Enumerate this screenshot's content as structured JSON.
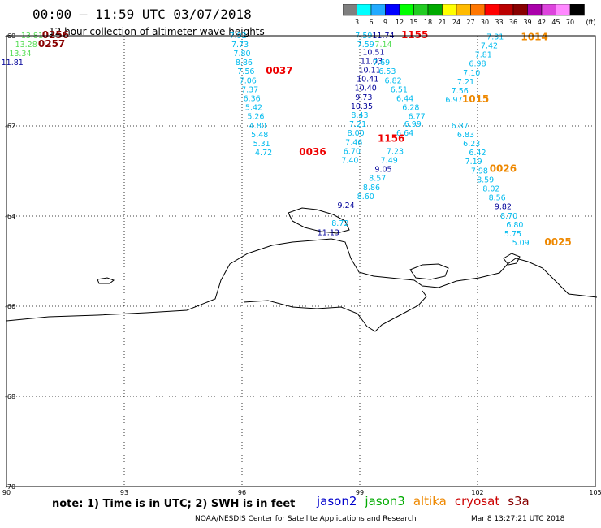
{
  "header": {
    "title": "00:00 – 11:59 UTC 03/07/2018",
    "subtitle": "12 hour collection of altimeter wave heights"
  },
  "colorbar": {
    "colors": [
      "#7f7f7f",
      "#00ffff",
      "#22aaff",
      "#0000ff",
      "#00ff00",
      "#22cc22",
      "#00aa00",
      "#ffff00",
      "#ffbb00",
      "#ff7700",
      "#ff0000",
      "#bb0000",
      "#880000",
      "#aa00aa",
      "#dd44dd",
      "#ff88ff",
      "#000000"
    ],
    "labels": [
      "3",
      "6",
      "9",
      "12",
      "15",
      "18",
      "21",
      "24",
      "27",
      "30",
      "33",
      "36",
      "39",
      "42",
      "45",
      "70"
    ],
    "unit": "(ft)"
  },
  "axes": {
    "lon_ticks": [
      "90",
      "93",
      "96",
      "99",
      "102",
      "105"
    ],
    "lat_ticks": [
      "-60",
      "-62",
      "-64",
      "-66",
      "-68",
      "-70"
    ],
    "lon_range": [
      90,
      105
    ],
    "lat_range": [
      -70,
      -60
    ]
  },
  "colors": {
    "cyan": "#00bbee",
    "dark_blue": "#000099",
    "green": "#55dd55",
    "red": "#ee0000",
    "dark_red": "#880000",
    "orange": "#ee8800"
  },
  "observations": [
    {
      "text": "13.81",
      "lon": 90.65,
      "lat": -60.05,
      "color": "#55dd55"
    },
    {
      "text": "13.28",
      "lon": 90.5,
      "lat": -60.25,
      "color": "#55dd55"
    },
    {
      "text": "13.34",
      "lon": 90.35,
      "lat": -60.45,
      "color": "#55dd55"
    },
    {
      "text": "11.81",
      "lon": 90.15,
      "lat": -60.65,
      "color": "#000099"
    },
    {
      "text": "7.92",
      "lon": 95.9,
      "lat": -60.05,
      "color": "#00bbee"
    },
    {
      "text": "7.73",
      "lon": 95.95,
      "lat": -60.25,
      "color": "#00bbee"
    },
    {
      "text": "7.80",
      "lon": 96.0,
      "lat": -60.45,
      "color": "#00bbee"
    },
    {
      "text": "8.86",
      "lon": 96.05,
      "lat": -60.65,
      "color": "#00bbee"
    },
    {
      "text": "7.56",
      "lon": 96.1,
      "lat": -60.85,
      "color": "#00bbee"
    },
    {
      "text": "7.06",
      "lon": 96.15,
      "lat": -61.05,
      "color": "#00bbee"
    },
    {
      "text": "7.37",
      "lon": 96.2,
      "lat": -61.25,
      "color": "#00bbee"
    },
    {
      "text": "6.36",
      "lon": 96.25,
      "lat": -61.45,
      "color": "#00bbee"
    },
    {
      "text": "5.42",
      "lon": 96.3,
      "lat": -61.65,
      "color": "#00bbee"
    },
    {
      "text": "5.26",
      "lon": 96.35,
      "lat": -61.85,
      "color": "#00bbee"
    },
    {
      "text": "4.80",
      "lon": 96.4,
      "lat": -62.05,
      "color": "#00bbee"
    },
    {
      "text": "5.48",
      "lon": 96.45,
      "lat": -62.25,
      "color": "#00bbee"
    },
    {
      "text": "5.31",
      "lon": 96.5,
      "lat": -62.45,
      "color": "#00bbee"
    },
    {
      "text": "4.72",
      "lon": 96.55,
      "lat": -62.65,
      "color": "#00bbee"
    },
    {
      "text": "7.59",
      "lon": 99.1,
      "lat": -60.05,
      "color": "#00bbee"
    },
    {
      "text": "11.74",
      "lon": 99.6,
      "lat": -60.05,
      "color": "#000099"
    },
    {
      "text": "7.59",
      "lon": 99.15,
      "lat": -60.25,
      "color": "#00bbee"
    },
    {
      "text": "7.14",
      "lon": 99.6,
      "lat": -60.25,
      "color": "#55dd55"
    },
    {
      "text": "10.51",
      "lon": 99.35,
      "lat": -60.42,
      "color": "#000099"
    },
    {
      "text": "11.03",
      "lon": 99.3,
      "lat": -60.62,
      "color": "#000099"
    },
    {
      "text": "7.69",
      "lon": 99.55,
      "lat": -60.65,
      "color": "#00bbee"
    },
    {
      "text": "10.11",
      "lon": 99.25,
      "lat": -60.82,
      "color": "#000099"
    },
    {
      "text": "6.53",
      "lon": 99.7,
      "lat": -60.85,
      "color": "#00bbee"
    },
    {
      "text": "10.41",
      "lon": 99.2,
      "lat": -61.02,
      "color": "#000099"
    },
    {
      "text": "6.82",
      "lon": 99.85,
      "lat": -61.05,
      "color": "#00bbee"
    },
    {
      "text": "10.40",
      "lon": 99.15,
      "lat": -61.22,
      "color": "#000099"
    },
    {
      "text": "6.51",
      "lon": 100.0,
      "lat": -61.25,
      "color": "#00bbee"
    },
    {
      "text": "9.73",
      "lon": 99.1,
      "lat": -61.42,
      "color": "#000099"
    },
    {
      "text": "6.44",
      "lon": 100.15,
      "lat": -61.45,
      "color": "#00bbee"
    },
    {
      "text": "10.35",
      "lon": 99.05,
      "lat": -61.62,
      "color": "#000099"
    },
    {
      "text": "6.28",
      "lon": 100.3,
      "lat": -61.65,
      "color": "#00bbee"
    },
    {
      "text": "8.43",
      "lon": 99.0,
      "lat": -61.82,
      "color": "#00bbee"
    },
    {
      "text": "6.77",
      "lon": 100.45,
      "lat": -61.85,
      "color": "#00bbee"
    },
    {
      "text": "7.21",
      "lon": 98.95,
      "lat": -62.02,
      "color": "#00bbee"
    },
    {
      "text": "6.99",
      "lon": 100.35,
      "lat": -62.02,
      "color": "#00bbee"
    },
    {
      "text": "8.00",
      "lon": 98.9,
      "lat": -62.22,
      "color": "#00bbee"
    },
    {
      "text": "6.64",
      "lon": 100.15,
      "lat": -62.22,
      "color": "#00bbee"
    },
    {
      "text": "7.46",
      "lon": 98.85,
      "lat": -62.42,
      "color": "#00bbee"
    },
    {
      "text": "6.70",
      "lon": 98.8,
      "lat": -62.62,
      "color": "#00bbee"
    },
    {
      "text": "7.23",
      "lon": 99.9,
      "lat": -62.62,
      "color": "#00bbee"
    },
    {
      "text": "7.40",
      "lon": 98.75,
      "lat": -62.82,
      "color": "#00bbee"
    },
    {
      "text": "7.49",
      "lon": 99.75,
      "lat": -62.82,
      "color": "#00bbee"
    },
    {
      "text": "9.05",
      "lon": 99.6,
      "lat": -63.02,
      "color": "#000099"
    },
    {
      "text": "8.57",
      "lon": 99.45,
      "lat": -63.22,
      "color": "#00bbee"
    },
    {
      "text": "8.86",
      "lon": 99.3,
      "lat": -63.42,
      "color": "#00bbee"
    },
    {
      "text": "8.60",
      "lon": 99.15,
      "lat": -63.62,
      "color": "#00bbee"
    },
    {
      "text": "9.24",
      "lon": 98.65,
      "lat": -63.82,
      "color": "#000099"
    },
    {
      "text": "8.72",
      "lon": 98.5,
      "lat": -64.22,
      "color": "#00bbee"
    },
    {
      "text": "11.13",
      "lon": 98.2,
      "lat": -64.42,
      "color": "#000099"
    },
    {
      "text": "7.31",
      "lon": 102.45,
      "lat": -60.08,
      "color": "#00bbee"
    },
    {
      "text": "7.42",
      "lon": 102.3,
      "lat": -60.28,
      "color": "#00bbee"
    },
    {
      "text": "7.81",
      "lon": 102.15,
      "lat": -60.48,
      "color": "#00bbee"
    },
    {
      "text": "6.98",
      "lon": 102.0,
      "lat": -60.68,
      "color": "#00bbee"
    },
    {
      "text": "7.10",
      "lon": 101.85,
      "lat": -60.88,
      "color": "#00bbee"
    },
    {
      "text": "7.21",
      "lon": 101.7,
      "lat": -61.08,
      "color": "#00bbee"
    },
    {
      "text": "7.56",
      "lon": 101.55,
      "lat": -61.28,
      "color": "#00bbee"
    },
    {
      "text": "6.97",
      "lon": 101.4,
      "lat": -61.48,
      "color": "#00bbee"
    },
    {
      "text": "6.87",
      "lon": 101.55,
      "lat": -62.05,
      "color": "#00bbee"
    },
    {
      "text": "6.83",
      "lon": 101.7,
      "lat": -62.25,
      "color": "#00bbee"
    },
    {
      "text": "6.23",
      "lon": 101.85,
      "lat": -62.45,
      "color": "#00bbee"
    },
    {
      "text": "6.42",
      "lon": 102.0,
      "lat": -62.65,
      "color": "#00bbee"
    },
    {
      "text": "7.19",
      "lon": 101.9,
      "lat": -62.85,
      "color": "#00bbee"
    },
    {
      "text": "7.98",
      "lon": 102.05,
      "lat": -63.05,
      "color": "#00bbee"
    },
    {
      "text": "8.59",
      "lon": 102.2,
      "lat": -63.25,
      "color": "#00bbee"
    },
    {
      "text": "8.02",
      "lon": 102.35,
      "lat": -63.45,
      "color": "#00bbee"
    },
    {
      "text": "8.56",
      "lon": 102.5,
      "lat": -63.65,
      "color": "#00bbee"
    },
    {
      "text": "9.82",
      "lon": 102.65,
      "lat": -63.85,
      "color": "#000099"
    },
    {
      "text": "8.70",
      "lon": 102.8,
      "lat": -64.05,
      "color": "#00bbee"
    },
    {
      "text": "6.80",
      "lon": 102.95,
      "lat": -64.25,
      "color": "#00bbee"
    },
    {
      "text": "5.75",
      "lon": 102.9,
      "lat": -64.45,
      "color": "#00bbee"
    },
    {
      "text": "5.09",
      "lon": 103.1,
      "lat": -64.65,
      "color": "#00bbee"
    }
  ],
  "time_labels": [
    {
      "text": "0256",
      "lon": 91.25,
      "lat": -60.05,
      "color": "#880000"
    },
    {
      "text": "0257",
      "lon": 91.15,
      "lat": -60.25,
      "color": "#880000"
    },
    {
      "text": "0037",
      "lon": 96.95,
      "lat": -60.85,
      "color": "#ee0000"
    },
    {
      "text": "0036",
      "lon": 97.8,
      "lat": -62.65,
      "color": "#ee0000"
    },
    {
      "text": "1155",
      "lon": 100.4,
      "lat": -60.05,
      "color": "#ee0000"
    },
    {
      "text": "1156",
      "lon": 99.8,
      "lat": -62.35,
      "color": "#ee0000"
    },
    {
      "text": "1014",
      "lon": 103.45,
      "lat": -60.1,
      "color": "#ee8800"
    },
    {
      "text": "1015",
      "lon": 101.95,
      "lat": -61.48,
      "color": "#ee8800"
    },
    {
      "text": "0026",
      "lon": 102.65,
      "lat": -63.02,
      "color": "#ee8800"
    },
    {
      "text": "0025",
      "lon": 104.05,
      "lat": -64.65,
      "color": "#ee8800"
    }
  ],
  "footer": {
    "note": "note: 1) Time is in UTC; 2) SWH is in feet",
    "satellites": [
      {
        "name": "jason2",
        "color": "#0000cc"
      },
      {
        "name": "jason3",
        "color": "#00aa00"
      },
      {
        "name": "altika",
        "color": "#ee8800"
      },
      {
        "name": "cryosat",
        "color": "#cc0000"
      },
      {
        "name": "s3a",
        "color": "#880000"
      }
    ],
    "credit": "NOAA/NESDIS Center for Satellite Applications and Research",
    "timestamp": "Mar  8 13:27:21 UTC 2018"
  }
}
